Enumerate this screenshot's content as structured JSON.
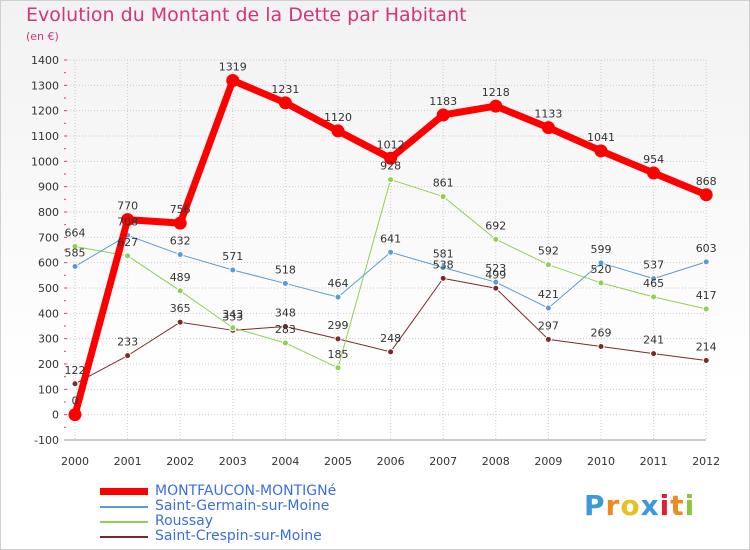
{
  "header": {
    "title": "Evolution du Montant de la Dette par Habitant",
    "subtitle": "(en €)"
  },
  "colors": {
    "title": "#d2357a",
    "axis_text": "#333333",
    "grid": "#cccccc",
    "axis_tick": "#e04060"
  },
  "logo": {
    "letters": [
      "P",
      "r",
      "o",
      "x",
      "i",
      "t",
      "i"
    ],
    "colors": [
      "#3c9ad8",
      "#f08a20",
      "#e8c020",
      "#3c9ad8",
      "#e02030",
      "#f08a20",
      "#8cc63f"
    ]
  },
  "chart_data": {
    "type": "line",
    "x": [
      "2000",
      "2001",
      "2002",
      "2003",
      "2004",
      "2005",
      "2006",
      "2007",
      "2008",
      "2009",
      "2010",
      "2011",
      "2012"
    ],
    "ylim": [
      -100,
      1400
    ],
    "yticks": [
      "-100",
      "0",
      "100",
      "200",
      "300",
      "400",
      "500",
      "600",
      "700",
      "800",
      "900",
      "1000",
      "1100",
      "1200",
      "1300",
      "1400"
    ],
    "grid": "horizontal",
    "legend_position": "bottom-left",
    "series": [
      {
        "name": "MONTFAUCON-MONTIGNé",
        "color": "#ff0000",
        "width": 7,
        "values": [
          0,
          770,
          756,
          1319,
          1231,
          1120,
          1012,
          1183,
          1218,
          1133,
          1041,
          954,
          868
        ],
        "labels": [
          "0",
          "770",
          "756",
          "1319",
          "1231",
          "1120",
          "1012",
          "1183",
          "1218",
          "1133",
          "1041",
          "954",
          "868"
        ]
      },
      {
        "name": "Saint-Germain-sur-Moine",
        "color": "#5b9bd5",
        "width": 1,
        "values": [
          585,
          708,
          632,
          571,
          518,
          464,
          641,
          581,
          523,
          421,
          599,
          537,
          603
        ],
        "labels": [
          "585",
          "708",
          "632",
          "571",
          "518",
          "464",
          "641",
          "581",
          "523",
          "421",
          "599",
          "537",
          "603"
        ]
      },
      {
        "name": "Roussay",
        "color": "#8fd14f",
        "width": 1,
        "values": [
          664,
          627,
          489,
          343,
          283,
          185,
          928,
          861,
          692,
          592,
          520,
          465,
          417
        ],
        "labels": [
          "664",
          "627",
          "489",
          "343",
          "283",
          "185",
          "928",
          "861",
          "692",
          "592",
          "520",
          "465",
          "417"
        ]
      },
      {
        "name": "Saint-Crespin-sur-Moine",
        "color": "#7b2a2a",
        "width": 1,
        "values": [
          122,
          233,
          365,
          333,
          348,
          299,
          248,
          538,
          499,
          297,
          269,
          241,
          214
        ],
        "labels": [
          "122",
          "233",
          "365",
          "333",
          "348",
          "299",
          "248",
          "538",
          "499",
          "297",
          "269",
          "241",
          "214"
        ]
      }
    ]
  }
}
